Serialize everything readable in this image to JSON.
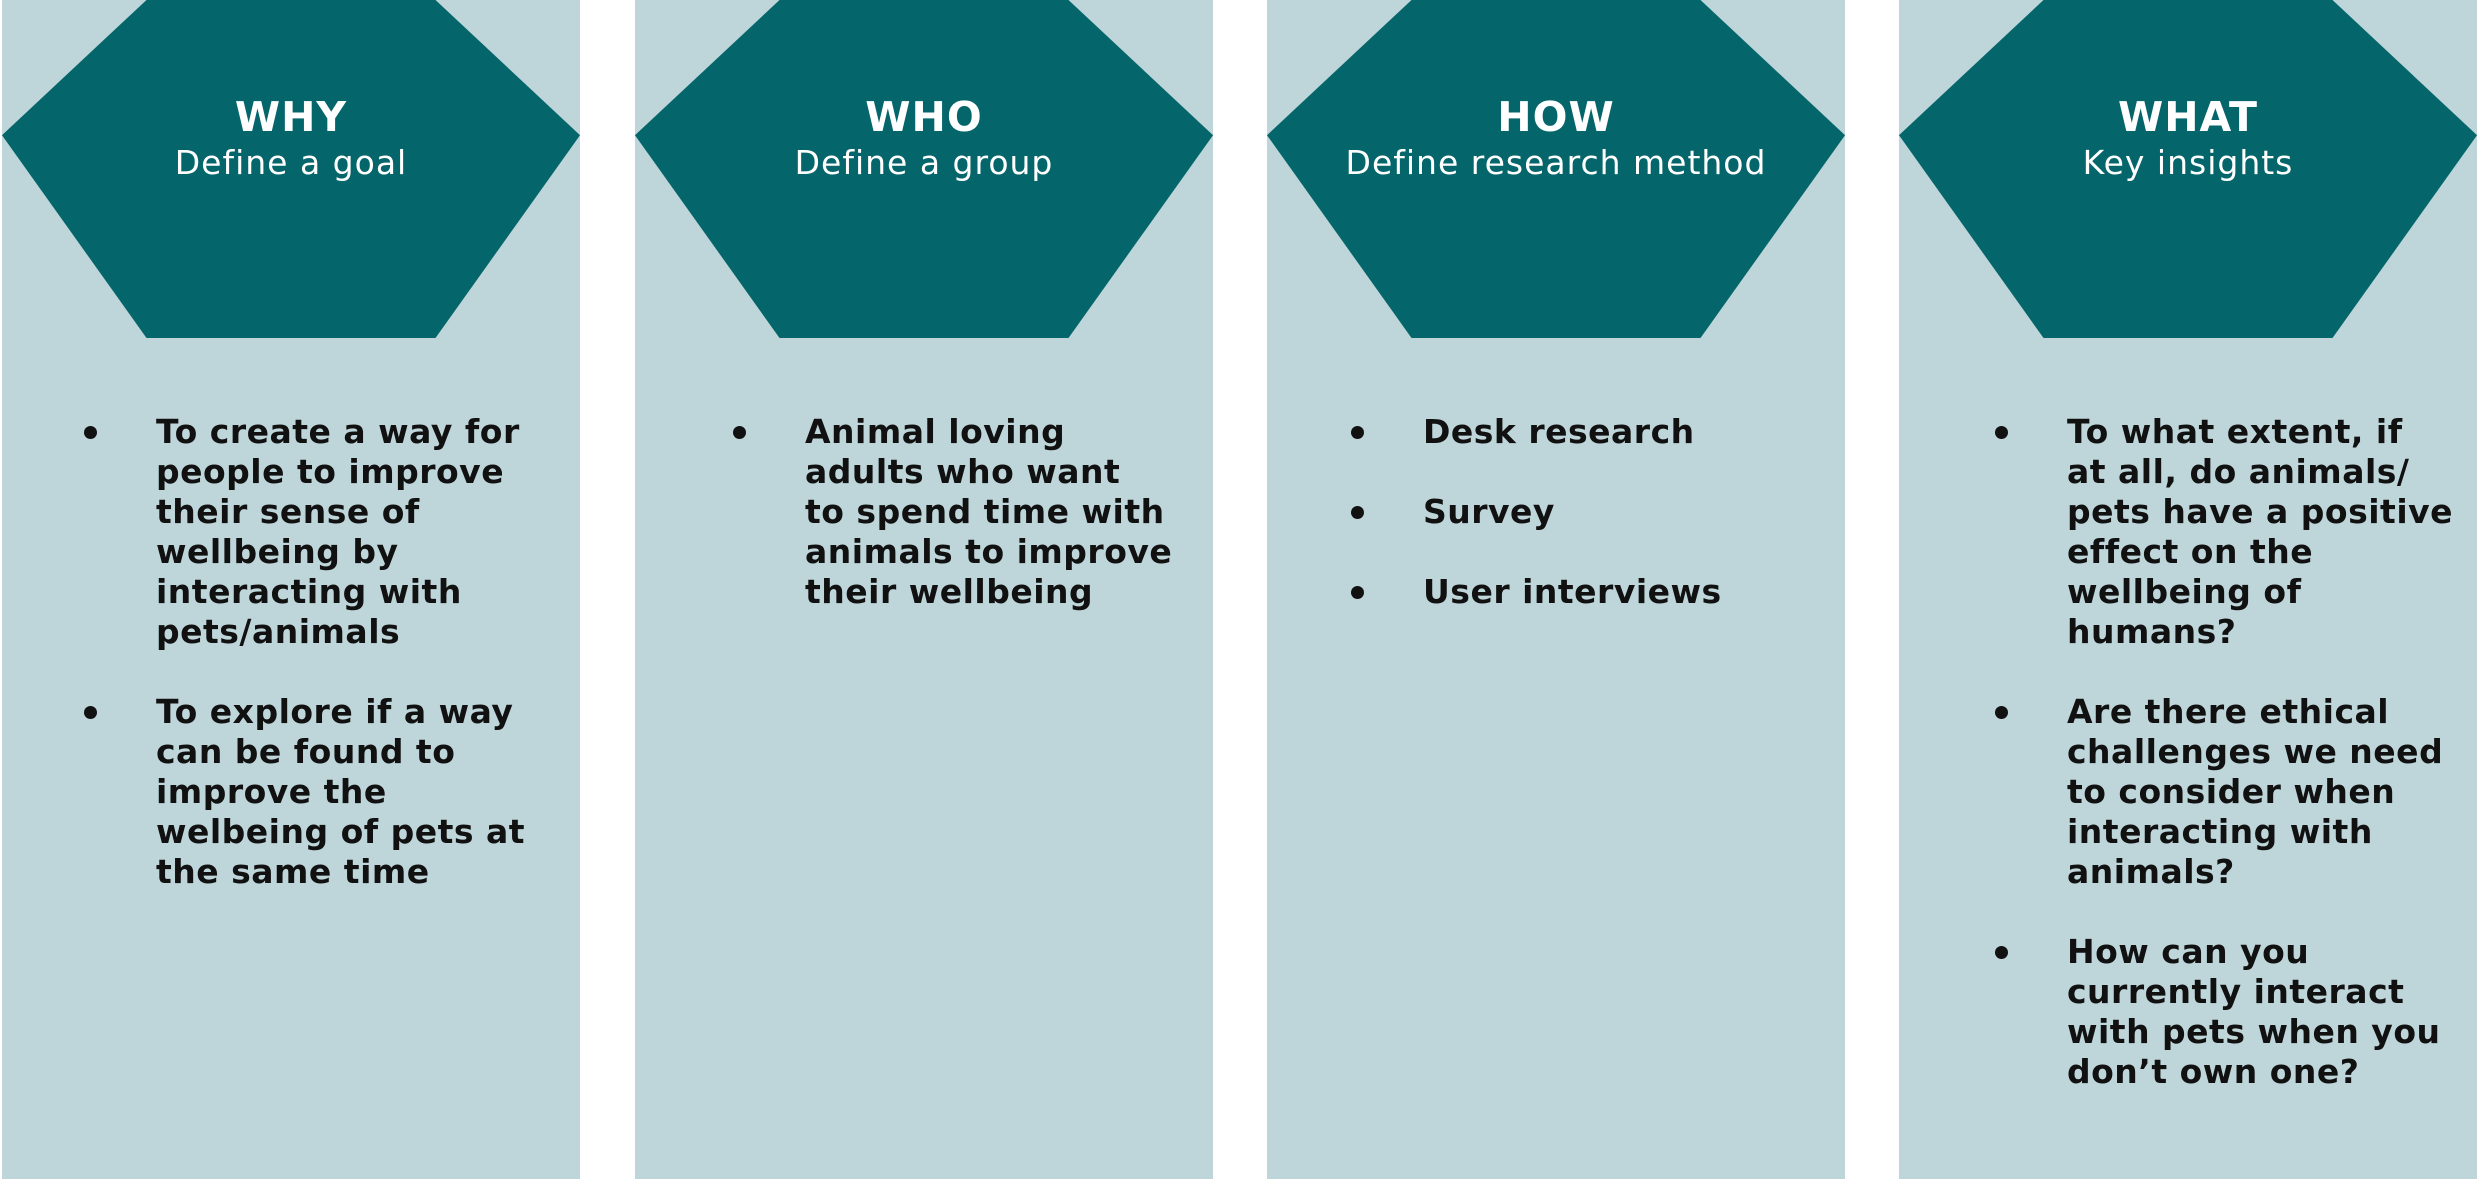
{
  "columns": [
    {
      "title": "WHY",
      "subtitle": "Define a goal",
      "items": [
        [
          "To create a way for",
          "people to improve",
          "their sense of",
          "wellbeing by",
          "interacting with",
          "pets/animals"
        ],
        [
          "To explore if a way",
          "can be found to",
          "improve the",
          "welbeing of pets at",
          "the same time"
        ]
      ]
    },
    {
      "title": "WHO",
      "subtitle": "Define a group",
      "items": [
        [
          "Animal loving",
          "adults who want",
          "to spend time with",
          "animals to improve",
          "their wellbeing"
        ]
      ]
    },
    {
      "title": "HOW",
      "subtitle": "Define research method",
      "items": [
        [
          "Desk research"
        ],
        [
          "Survey"
        ],
        [
          "User interviews"
        ]
      ]
    },
    {
      "title": "WHAT",
      "subtitle": "Key insights",
      "items": [
        [
          "To what extent, if",
          "at all, do animals/",
          "pets have a positive",
          "effect on the",
          "wellbeing of",
          "humans?"
        ],
        [
          "Are there ethical",
          "challenges we need",
          "to consider when",
          "interacting with",
          "animals?"
        ],
        [
          "How can you",
          "currently interact",
          "with pets when you",
          "don’t own one?"
        ]
      ]
    }
  ],
  "colors": {
    "hexagon": "#04666b",
    "panel": "#bed6da",
    "text": "#111111",
    "hex_text": "#ffffff"
  }
}
